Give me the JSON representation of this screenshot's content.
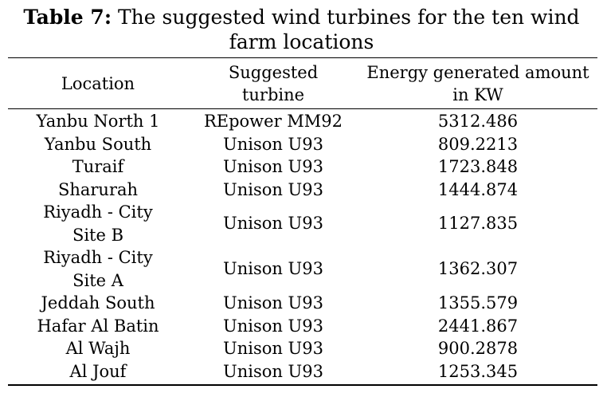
{
  "caption": {
    "label": "Table 7:",
    "text_line1": " The suggested wind turbines for the ten wind",
    "text_line2": "farm locations"
  },
  "table": {
    "headers": [
      [
        "Location"
      ],
      [
        "Suggested",
        "turbine"
      ],
      [
        "Energy generated amount",
        "in KW"
      ]
    ],
    "rows": [
      {
        "location": [
          "Yanbu North 1"
        ],
        "turbine": "REpower MM92",
        "energy": "5312.486"
      },
      {
        "location": [
          "Yanbu South"
        ],
        "turbine": "Unison U93",
        "energy": "809.2213"
      },
      {
        "location": [
          "Turaif"
        ],
        "turbine": "Unison U93",
        "energy": "1723.848"
      },
      {
        "location": [
          "Sharurah"
        ],
        "turbine": "Unison U93",
        "energy": "1444.874"
      },
      {
        "location": [
          "Riyadh - City",
          "Site B"
        ],
        "turbine": "Unison U93",
        "energy": "1127.835"
      },
      {
        "location": [
          "Riyadh - City",
          "Site A"
        ],
        "turbine": "Unison U93",
        "energy": "1362.307"
      },
      {
        "location": [
          "Jeddah South"
        ],
        "turbine": "Unison U93",
        "energy": "1355.579"
      },
      {
        "location": [
          "Hafar Al Batin"
        ],
        "turbine": "Unison U93",
        "energy": "2441.867"
      },
      {
        "location": [
          "Al Wajh"
        ],
        "turbine": "Unison U93",
        "energy": "900.2878"
      },
      {
        "location": [
          "Al Jouf"
        ],
        "turbine": "Unison U93",
        "energy": "1253.345"
      }
    ]
  }
}
